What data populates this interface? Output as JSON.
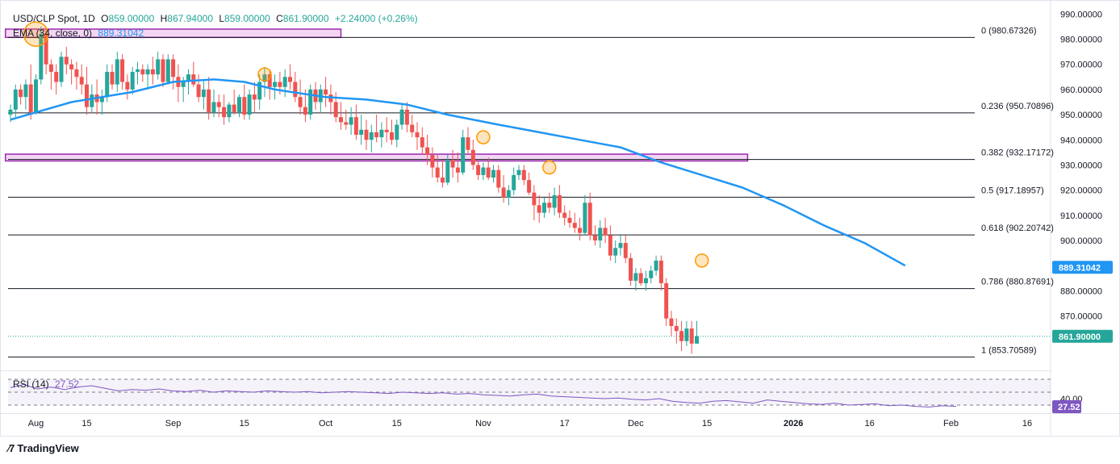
{
  "header": {
    "symbol": "USD/CLP Spot, 1D",
    "open_label": "O",
    "open": "859.00000",
    "high_label": "H",
    "high": "867.94000",
    "low_label": "L",
    "low": "859.00000",
    "close_label": "C",
    "close": "861.90000",
    "change": "+2.24000 (+0.26%)",
    "ema_label": "EMA (34, close, 0)",
    "ema_value": "889.31042",
    "rsi_label": "RSI (14)",
    "rsi_value": "27.52"
  },
  "branding": {
    "logo_text": "TradingView"
  },
  "colors": {
    "up": "#26a69a",
    "down": "#ef5350",
    "ema": "#2196f3",
    "rsi": "#7e57c2",
    "zone_border": "#9c27b0",
    "zone_fill": "#f3d6f3",
    "highlight": "#ff9800"
  },
  "chart_data": {
    "type": "candlestick",
    "title": "USD/CLP Spot, 1D",
    "ylim": [
      849,
      993
    ],
    "y_ticks": [
      "990.00000",
      "980.00000",
      "970.00000",
      "960.00000",
      "950.00000",
      "940.00000",
      "930.00000",
      "920.00000",
      "910.00000",
      "900.00000",
      "890.00000",
      "880.00000",
      "870.00000"
    ],
    "x_ticks": [
      {
        "label": "Aug",
        "day": 5
      },
      {
        "label": "15",
        "day": 15
      },
      {
        "label": "Sep",
        "day": 32
      },
      {
        "label": "15",
        "day": 46
      },
      {
        "label": "Oct",
        "day": 62
      },
      {
        "label": "15",
        "day": 76
      },
      {
        "label": "Nov",
        "day": 93
      },
      {
        "label": "17",
        "day": 109
      },
      {
        "label": "Dec",
        "day": 123
      },
      {
        "label": "15",
        "day": 137
      },
      {
        "label": "2026",
        "day": 154
      },
      {
        "label": "16",
        "day": 169
      },
      {
        "label": "Feb",
        "day": 185
      },
      {
        "label": "16",
        "day": 200
      }
    ],
    "candles": [
      [
        950,
        954,
        947,
        952
      ],
      [
        952,
        962,
        949,
        960
      ],
      [
        960,
        962,
        954,
        957
      ],
      [
        957,
        964,
        952,
        962
      ],
      [
        962,
        970,
        948,
        951
      ],
      [
        951,
        966,
        950,
        964
      ],
      [
        964,
        985,
        962,
        982
      ],
      [
        982,
        985,
        966,
        970
      ],
      [
        970,
        972,
        960,
        967
      ],
      [
        967,
        970,
        958,
        963
      ],
      [
        963,
        975,
        961,
        973
      ],
      [
        973,
        977,
        966,
        970
      ],
      [
        970,
        972,
        962,
        968
      ],
      [
        968,
        971,
        960,
        965
      ],
      [
        965,
        970,
        958,
        962
      ],
      [
        962,
        969,
        950,
        953
      ],
      [
        953,
        962,
        951,
        958
      ],
      [
        958,
        964,
        950,
        955
      ],
      [
        955,
        960,
        950,
        957
      ],
      [
        957,
        970,
        955,
        967
      ],
      [
        967,
        970,
        960,
        962
      ],
      [
        962,
        975,
        959,
        972
      ],
      [
        972,
        974,
        960,
        963
      ],
      [
        963,
        966,
        956,
        960
      ],
      [
        960,
        969,
        958,
        967
      ],
      [
        967,
        971,
        962,
        968
      ],
      [
        968,
        970,
        963,
        966
      ],
      [
        966,
        970,
        960,
        968
      ],
      [
        968,
        973,
        962,
        966
      ],
      [
        966,
        975,
        964,
        972
      ],
      [
        972,
        974,
        961,
        963
      ],
      [
        963,
        974,
        962,
        972
      ],
      [
        972,
        974,
        960,
        965
      ],
      [
        965,
        970,
        955,
        961
      ],
      [
        961,
        965,
        955,
        963
      ],
      [
        963,
        968,
        958,
        966
      ],
      [
        966,
        971,
        961,
        962
      ],
      [
        962,
        966,
        955,
        957
      ],
      [
        957,
        964,
        952,
        960
      ],
      [
        960,
        965,
        948,
        951
      ],
      [
        951,
        960,
        949,
        955
      ],
      [
        955,
        958,
        949,
        953
      ],
      [
        953,
        958,
        946,
        949
      ],
      [
        949,
        955,
        947,
        954
      ],
      [
        954,
        960,
        950,
        951
      ],
      [
        951,
        958,
        949,
        957
      ],
      [
        957,
        962,
        948,
        950
      ],
      [
        950,
        960,
        948,
        958
      ],
      [
        958,
        963,
        951,
        956
      ],
      [
        956,
        966,
        952,
        963
      ],
      [
        963,
        969,
        957,
        966
      ],
      [
        966,
        968,
        956,
        961
      ],
      [
        961,
        966,
        956,
        963
      ],
      [
        963,
        967,
        958,
        961
      ],
      [
        961,
        968,
        957,
        965
      ],
      [
        965,
        970,
        960,
        963
      ],
      [
        963,
        967,
        955,
        957
      ],
      [
        957,
        964,
        950,
        953
      ],
      [
        953,
        960,
        947,
        950
      ],
      [
        950,
        962,
        948,
        960
      ],
      [
        960,
        963,
        952,
        955
      ],
      [
        955,
        962,
        951,
        960
      ],
      [
        960,
        965,
        953,
        958
      ],
      [
        958,
        962,
        950,
        955
      ],
      [
        955,
        959,
        947,
        949
      ],
      [
        949,
        955,
        944,
        947
      ],
      [
        947,
        952,
        944,
        946
      ],
      [
        946,
        953,
        942,
        949
      ],
      [
        949,
        954,
        940,
        942
      ],
      [
        942,
        950,
        938,
        944
      ],
      [
        944,
        948,
        936,
        940
      ],
      [
        940,
        946,
        935,
        943
      ],
      [
        943,
        950,
        939,
        941
      ],
      [
        941,
        947,
        937,
        944
      ],
      [
        944,
        949,
        939,
        943
      ],
      [
        943,
        948,
        938,
        940
      ],
      [
        940,
        948,
        937,
        946
      ],
      [
        946,
        954,
        944,
        952
      ],
      [
        952,
        955,
        943,
        946
      ],
      [
        946,
        950,
        941,
        943
      ],
      [
        943,
        947,
        936,
        941
      ],
      [
        941,
        945,
        934,
        937
      ],
      [
        937,
        942,
        930,
        934
      ],
      [
        934,
        937,
        925,
        929
      ],
      [
        929,
        934,
        923,
        925
      ],
      [
        925,
        932,
        921,
        923
      ],
      [
        923,
        934,
        922,
        932
      ],
      [
        932,
        936,
        925,
        929
      ],
      [
        929,
        935,
        923,
        927
      ],
      [
        927,
        944,
        926,
        941
      ],
      [
        941,
        945,
        934,
        936
      ],
      [
        936,
        940,
        928,
        930
      ],
      [
        930,
        932,
        924,
        926
      ],
      [
        926,
        931,
        924,
        929
      ],
      [
        929,
        933,
        924,
        925
      ],
      [
        925,
        930,
        923,
        928
      ],
      [
        928,
        930,
        919,
        921
      ],
      [
        921,
        926,
        915,
        917
      ],
      [
        917,
        922,
        914,
        920
      ],
      [
        920,
        929,
        918,
        926
      ],
      [
        926,
        930,
        924,
        928
      ],
      [
        928,
        930,
        922,
        924
      ],
      [
        924,
        927,
        918,
        919
      ],
      [
        919,
        922,
        908,
        914
      ],
      [
        914,
        918,
        907,
        911
      ],
      [
        911,
        917,
        909,
        915
      ],
      [
        915,
        919,
        911,
        913
      ],
      [
        913,
        921,
        910,
        918
      ],
      [
        918,
        922,
        909,
        911
      ],
      [
        911,
        914,
        906,
        909
      ],
      [
        909,
        912,
        905,
        907
      ],
      [
        907,
        911,
        903,
        905
      ],
      [
        905,
        909,
        900,
        903
      ],
      [
        903,
        918,
        902,
        915
      ],
      [
        915,
        919,
        900,
        902
      ],
      [
        902,
        906,
        898,
        900
      ],
      [
        900,
        908,
        897,
        905
      ],
      [
        905,
        909,
        899,
        902
      ],
      [
        902,
        906,
        892,
        894
      ],
      [
        894,
        900,
        891,
        897
      ],
      [
        897,
        902,
        894,
        899
      ],
      [
        899,
        902,
        891,
        893
      ],
      [
        893,
        895,
        882,
        884
      ],
      [
        884,
        889,
        880,
        887
      ],
      [
        887,
        889,
        882,
        883
      ],
      [
        883,
        888,
        880,
        885
      ],
      [
        885,
        890,
        883,
        888
      ],
      [
        888,
        894,
        886,
        892
      ],
      [
        892,
        894,
        880,
        883
      ],
      [
        883,
        885,
        866,
        869
      ],
      [
        869,
        872,
        862,
        866
      ],
      [
        866,
        869,
        859,
        864
      ],
      [
        864,
        868,
        856,
        860
      ],
      [
        860,
        868,
        858,
        865
      ],
      [
        865,
        868,
        855,
        859
      ],
      [
        859,
        868,
        859,
        862
      ]
    ],
    "ema_34": [
      [
        0,
        948
      ],
      [
        12,
        955
      ],
      [
        24,
        959
      ],
      [
        32,
        963
      ],
      [
        40,
        964
      ],
      [
        46,
        963
      ],
      [
        52,
        960
      ],
      [
        62,
        957
      ],
      [
        70,
        956
      ],
      [
        78,
        954
      ],
      [
        86,
        950
      ],
      [
        96,
        946
      ],
      [
        104,
        943
      ],
      [
        112,
        940
      ],
      [
        120,
        937
      ],
      [
        128,
        931
      ],
      [
        136,
        926
      ],
      [
        144,
        921
      ],
      [
        152,
        914
      ],
      [
        160,
        906
      ],
      [
        168,
        899
      ],
      [
        176,
        890
      ]
    ],
    "fibonacci": [
      {
        "ratio": "0",
        "label": "0 (980.67326)",
        "value": 980.67326
      },
      {
        "ratio": "0.236",
        "label": "0.236 (950.70896)",
        "value": 950.70896
      },
      {
        "ratio": "0.382",
        "label": "0.382 (932.17172)",
        "value": 932.17172
      },
      {
        "ratio": "0.5",
        "label": "0.5 (917.18957)",
        "value": 917.18957
      },
      {
        "ratio": "0.618",
        "label": "0.618 (902.20742)",
        "value": 902.20742
      },
      {
        "ratio": "0.786",
        "label": "0.786 (880.87691)",
        "value": 880.87691
      },
      {
        "ratio": "1",
        "label": "1 (853.70589)",
        "value": 853.70589
      }
    ],
    "zones": [
      {
        "from_day": -1,
        "to_day": 65,
        "low": 980.7,
        "high": 984
      },
      {
        "from_day": -1,
        "to_day": 145,
        "low": 931.6,
        "high": 934.3
      }
    ],
    "highlights": [
      {
        "day": 5,
        "value": 982
      },
      {
        "day": 50,
        "value": 966
      },
      {
        "day": 93,
        "value": 941
      },
      {
        "day": 106,
        "value": 929
      },
      {
        "day": 136,
        "value": 892
      }
    ],
    "price_labels": [
      {
        "name": "ema",
        "text": "889.31042",
        "value": 889.31042
      },
      {
        "name": "last",
        "text": "861.90000",
        "value": 861.9
      }
    ],
    "rsi": {
      "ylim": [
        20,
        80
      ],
      "levels": [
        70,
        50,
        30
      ],
      "tick_label": "40.00",
      "current": "27.52",
      "values": [
        57,
        62,
        55,
        58,
        54,
        58,
        60,
        56,
        52,
        54,
        53,
        55,
        52,
        51,
        53,
        50,
        52,
        51,
        50,
        52,
        51,
        50,
        51,
        49,
        50,
        51,
        50,
        49,
        48,
        50,
        49,
        48,
        49,
        47,
        48,
        46,
        45,
        44,
        46,
        47,
        44,
        43,
        42,
        41,
        40,
        41,
        39,
        38,
        40,
        36,
        34,
        33,
        36,
        37,
        35,
        33,
        38,
        36,
        34,
        32,
        31,
        33,
        30,
        31,
        32,
        29,
        30,
        28,
        27,
        29,
        28
      ]
    }
  }
}
